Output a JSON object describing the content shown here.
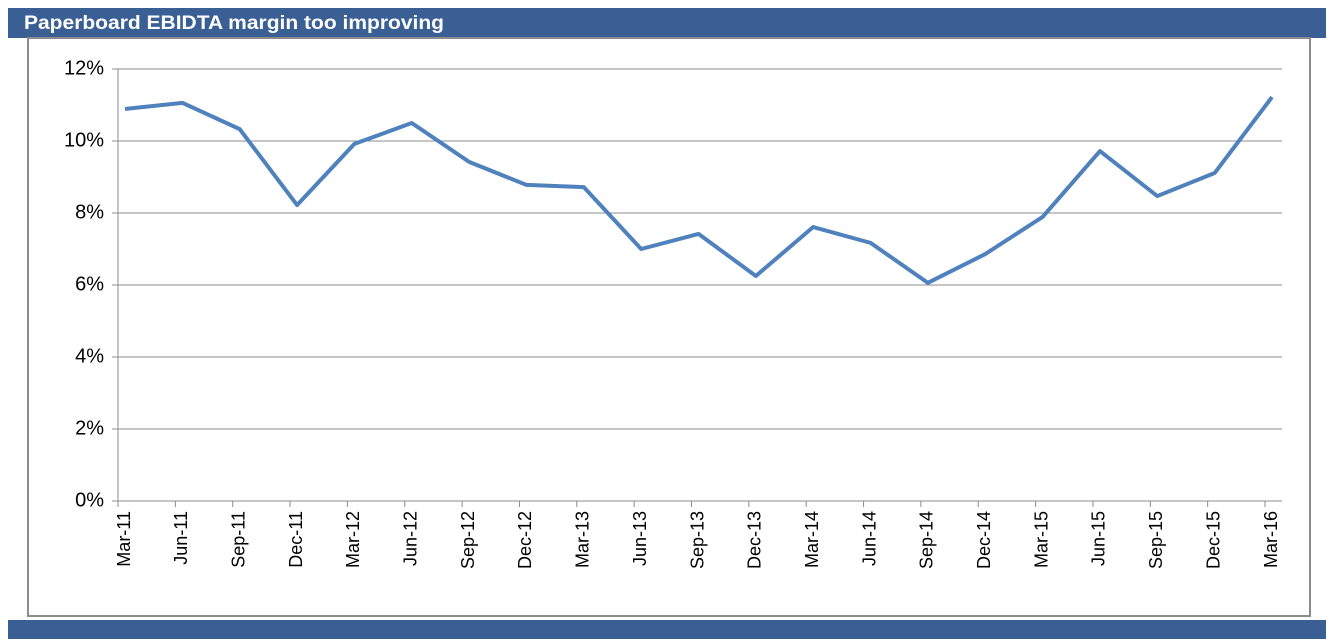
{
  "chart_data": {
    "type": "line",
    "title": "Paperboard EBIDTA margin too improving",
    "categories": [
      "Mar-11",
      "Jun-11",
      "Sep-11",
      "Dec-11",
      "Mar-12",
      "Jun-12",
      "Sep-12",
      "Dec-12",
      "Mar-13",
      "Jun-13",
      "Sep-13",
      "Dec-13",
      "Mar-14",
      "Jun-14",
      "Sep-14",
      "Dec-14",
      "Mar-15",
      "Jun-15",
      "Sep-15",
      "Dec-15",
      "Mar-16"
    ],
    "series": [
      {
        "color": "#4f81bd",
        "values": [
          10.89,
          11.06,
          10.33,
          8.22,
          9.92,
          10.5,
          9.42,
          8.78,
          8.72,
          7.0,
          7.42,
          6.25,
          7.61,
          7.17,
          6.06,
          6.86,
          7.89,
          9.72,
          8.47,
          9.11,
          11.22
        ]
      }
    ],
    "ylim": [
      0,
      12
    ],
    "yticks": [
      {
        "value": 0,
        "label": "0%"
      },
      {
        "value": 2,
        "label": "2%"
      },
      {
        "value": 4,
        "label": "4%"
      },
      {
        "value": 6,
        "label": "6%"
      },
      {
        "value": 8,
        "label": "8%"
      },
      {
        "value": 10,
        "label": "10%"
      },
      {
        "value": 12,
        "label": "12%"
      }
    ],
    "grid": true
  }
}
